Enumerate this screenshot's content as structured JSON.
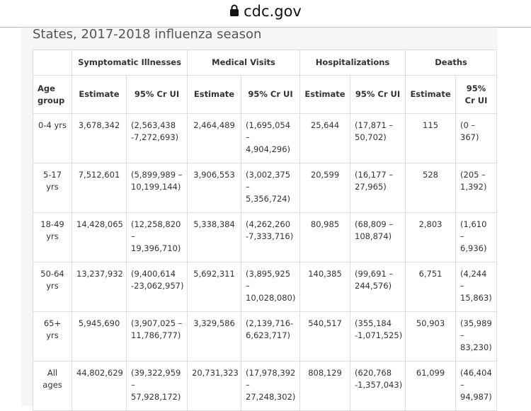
{
  "browser": {
    "url": "cdc.gov"
  },
  "page": {
    "title": "States, 2017-2018 influenza season"
  },
  "table": {
    "groups": [
      "Symptomatic Illnesses",
      "Medical Visits",
      "Hospitalizations",
      "Deaths"
    ],
    "columns": [
      "Age group",
      "Estimate",
      "95% Cr UI",
      "Estimate",
      "95% Cr UI",
      "Estimate",
      "95% Cr UI",
      "Estimate",
      "95% Cr UI"
    ],
    "rows": [
      [
        "0-4 yrs",
        "3,678,342",
        "(2,563,438 -7,272,693)",
        "2,464,489",
        "(1,695,054 – 4,904,296)",
        "25,644",
        "(17,871 – 50,702)",
        "115",
        "(0 – 367)"
      ],
      [
        "5-17 yrs",
        "7,512,601",
        "(5,899,989 – 10,199,144)",
        "3,906,553",
        "(3,002,375 – 5,356,724)",
        "20,599",
        "(16,177 – 27,965)",
        "528",
        "(205 – 1,392)"
      ],
      [
        "18-49 yrs",
        "14,428,065",
        "(12,258,820 – 19,396,710)",
        "5,338,384",
        "(4,262,260 -7,333,716)",
        "80,985",
        "(68,809 – 108,874)",
        "2,803",
        "(1,610 – 6,936)"
      ],
      [
        "50-64 yrs",
        "13,237,932",
        "(9,400,614 -23,062,957)",
        "5,692,311",
        "(3,895,925 – 10,028,080)",
        "140,385",
        "(99,691 – 244,576)",
        "6,751",
        "(4,244 – 15,863)"
      ],
      [
        "65+ yrs",
        "5,945,690",
        "(3,907,025 – 11,786,777)",
        "3,329,586",
        "(2,139,716-6,623,717)",
        "540,517",
        "(355,184 -1,071,525)",
        "50,903",
        "(35,989 – 83,230)"
      ],
      [
        "All ages",
        "44,802,629",
        "(39,322,959 – 57,928,172)",
        "20,731,323",
        "(17,978,392 – 27,248,302)",
        "808,129",
        "(620,768 -1,357,043)",
        "61,099",
        "(46,404 – 94,987)"
      ]
    ]
  }
}
